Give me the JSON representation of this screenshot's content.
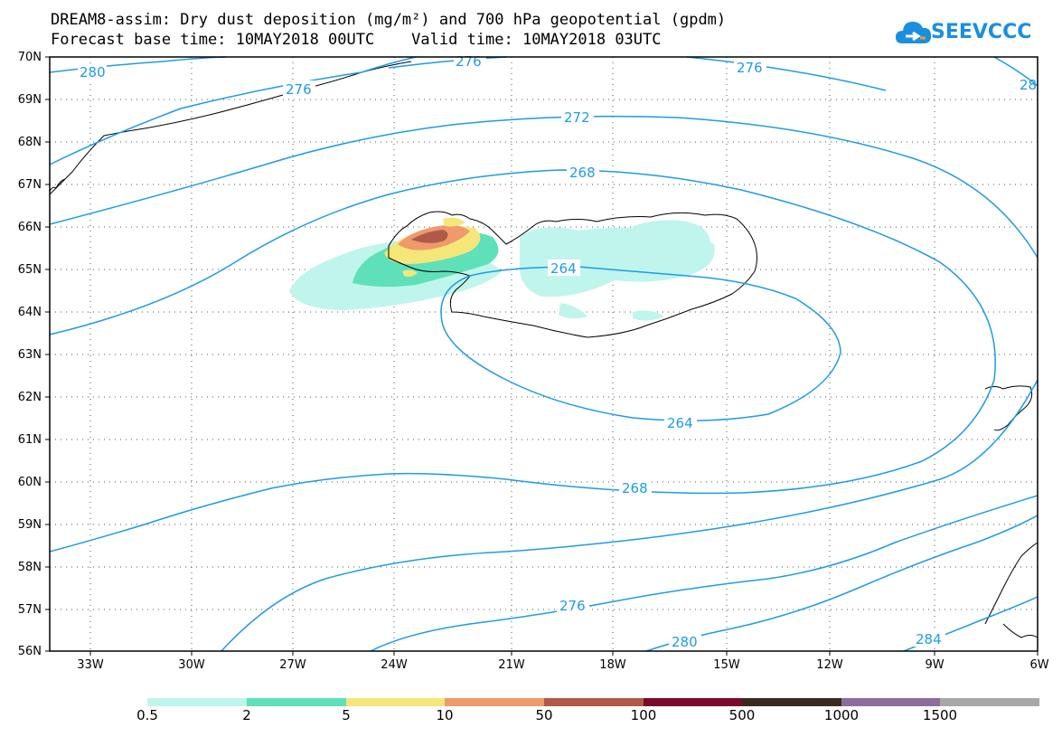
{
  "header": {
    "title_line1": "DREAM8-assim: Dry dust deposition (mg/m²) and 700 hPa geopotential (gpdm)",
    "title_line2": "Forecast base time: 10MAY2018 00UTC    Valid time: 10MAY2018 03UTC",
    "logo_text": "SEEVCCC"
  },
  "map": {
    "lat_labels": [
      "70N",
      "69N",
      "68N",
      "67N",
      "66N",
      "65N",
      "64N",
      "63N",
      "62N",
      "61N",
      "60N",
      "59N",
      "58N",
      "57N",
      "56N"
    ],
    "lon_labels": [
      "33W",
      "30W",
      "27W",
      "24W",
      "21W",
      "18W",
      "15W",
      "12W",
      "9W",
      "6W"
    ],
    "contour_labels": [
      "280",
      "276",
      "276",
      "276",
      "28",
      "272",
      "268",
      "264",
      "264",
      "268",
      "276",
      "280",
      "284"
    ],
    "contour_color": "#1e9be6",
    "coast_color": "#000000"
  },
  "colorbar": {
    "colors": [
      "#bff5ec",
      "#5ee0b8",
      "#f5e67a",
      "#ee9a6a",
      "#b05a4a",
      "#7d0a2a",
      "#3a2a1e",
      "#8c6d9e",
      "#a8a8a8"
    ],
    "labels": [
      "0.5",
      "2",
      "5",
      "10",
      "50",
      "100",
      "500",
      "1000",
      "1500"
    ]
  }
}
